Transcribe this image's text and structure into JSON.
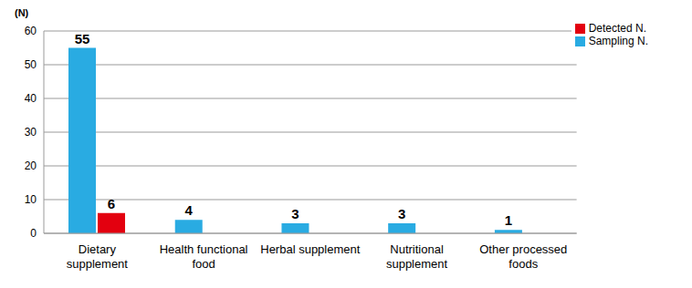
{
  "chart_data": {
    "type": "bar",
    "y_label": "(N)",
    "categories": [
      "Dietary supplement",
      "Health functional food",
      "Herbal supplement",
      "Nutritional supplement",
      "Other processed foods"
    ],
    "series": [
      {
        "name": "Sampling N.",
        "color": "#29abe2",
        "values": [
          55,
          4,
          3,
          3,
          1
        ]
      },
      {
        "name": "Detected N.",
        "color": "#e3000f",
        "values": [
          6,
          0,
          0,
          0,
          0
        ]
      }
    ],
    "ylim": [
      0,
      60
    ],
    "yticks": [
      0,
      10,
      20,
      30,
      40,
      50,
      60
    ],
    "grid": true,
    "legend": "upper right",
    "data_labels": true
  }
}
